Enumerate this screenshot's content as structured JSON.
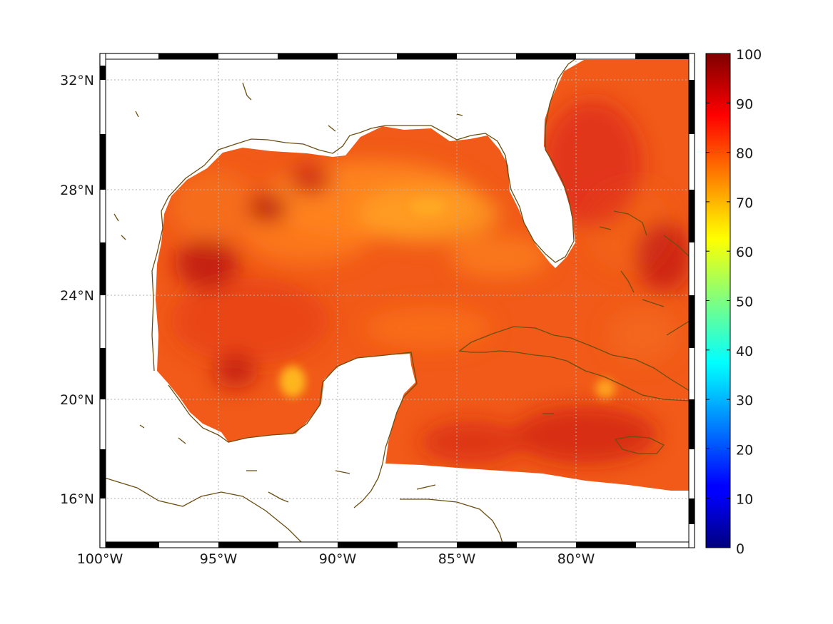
{
  "chart_data": {
    "type": "heatmap",
    "title": "",
    "xlabel": "",
    "ylabel": "",
    "projection": "mercator",
    "lon_range": [
      -100,
      -75
    ],
    "lat_range": [
      14,
      33
    ],
    "x_ticks": [
      {
        "value": -100,
        "label": "100°W"
      },
      {
        "value": -95,
        "label": "95°W"
      },
      {
        "value": -90,
        "label": "90°W"
      },
      {
        "value": -85,
        "label": "85°W"
      },
      {
        "value": -80,
        "label": "80°W"
      }
    ],
    "y_ticks": [
      {
        "value": 32,
        "label": "32°N"
      },
      {
        "value": 28,
        "label": "28°N"
      },
      {
        "value": 24,
        "label": "24°N"
      },
      {
        "value": 20,
        "label": "20°N"
      },
      {
        "value": 16,
        "label": "16°N"
      }
    ],
    "grid": true,
    "colormap": "jet",
    "colorbar": {
      "range": [
        0,
        100
      ],
      "ticks": [
        "0",
        "10",
        "20",
        "30",
        "40",
        "50",
        "60",
        "70",
        "80",
        "90",
        "100"
      ]
    },
    "field_value_range_approx": [
      70,
      95
    ],
    "colors": {
      "coastline": "#6b4e12",
      "grid": "#b0b0b0",
      "frame": "#000000"
    }
  }
}
